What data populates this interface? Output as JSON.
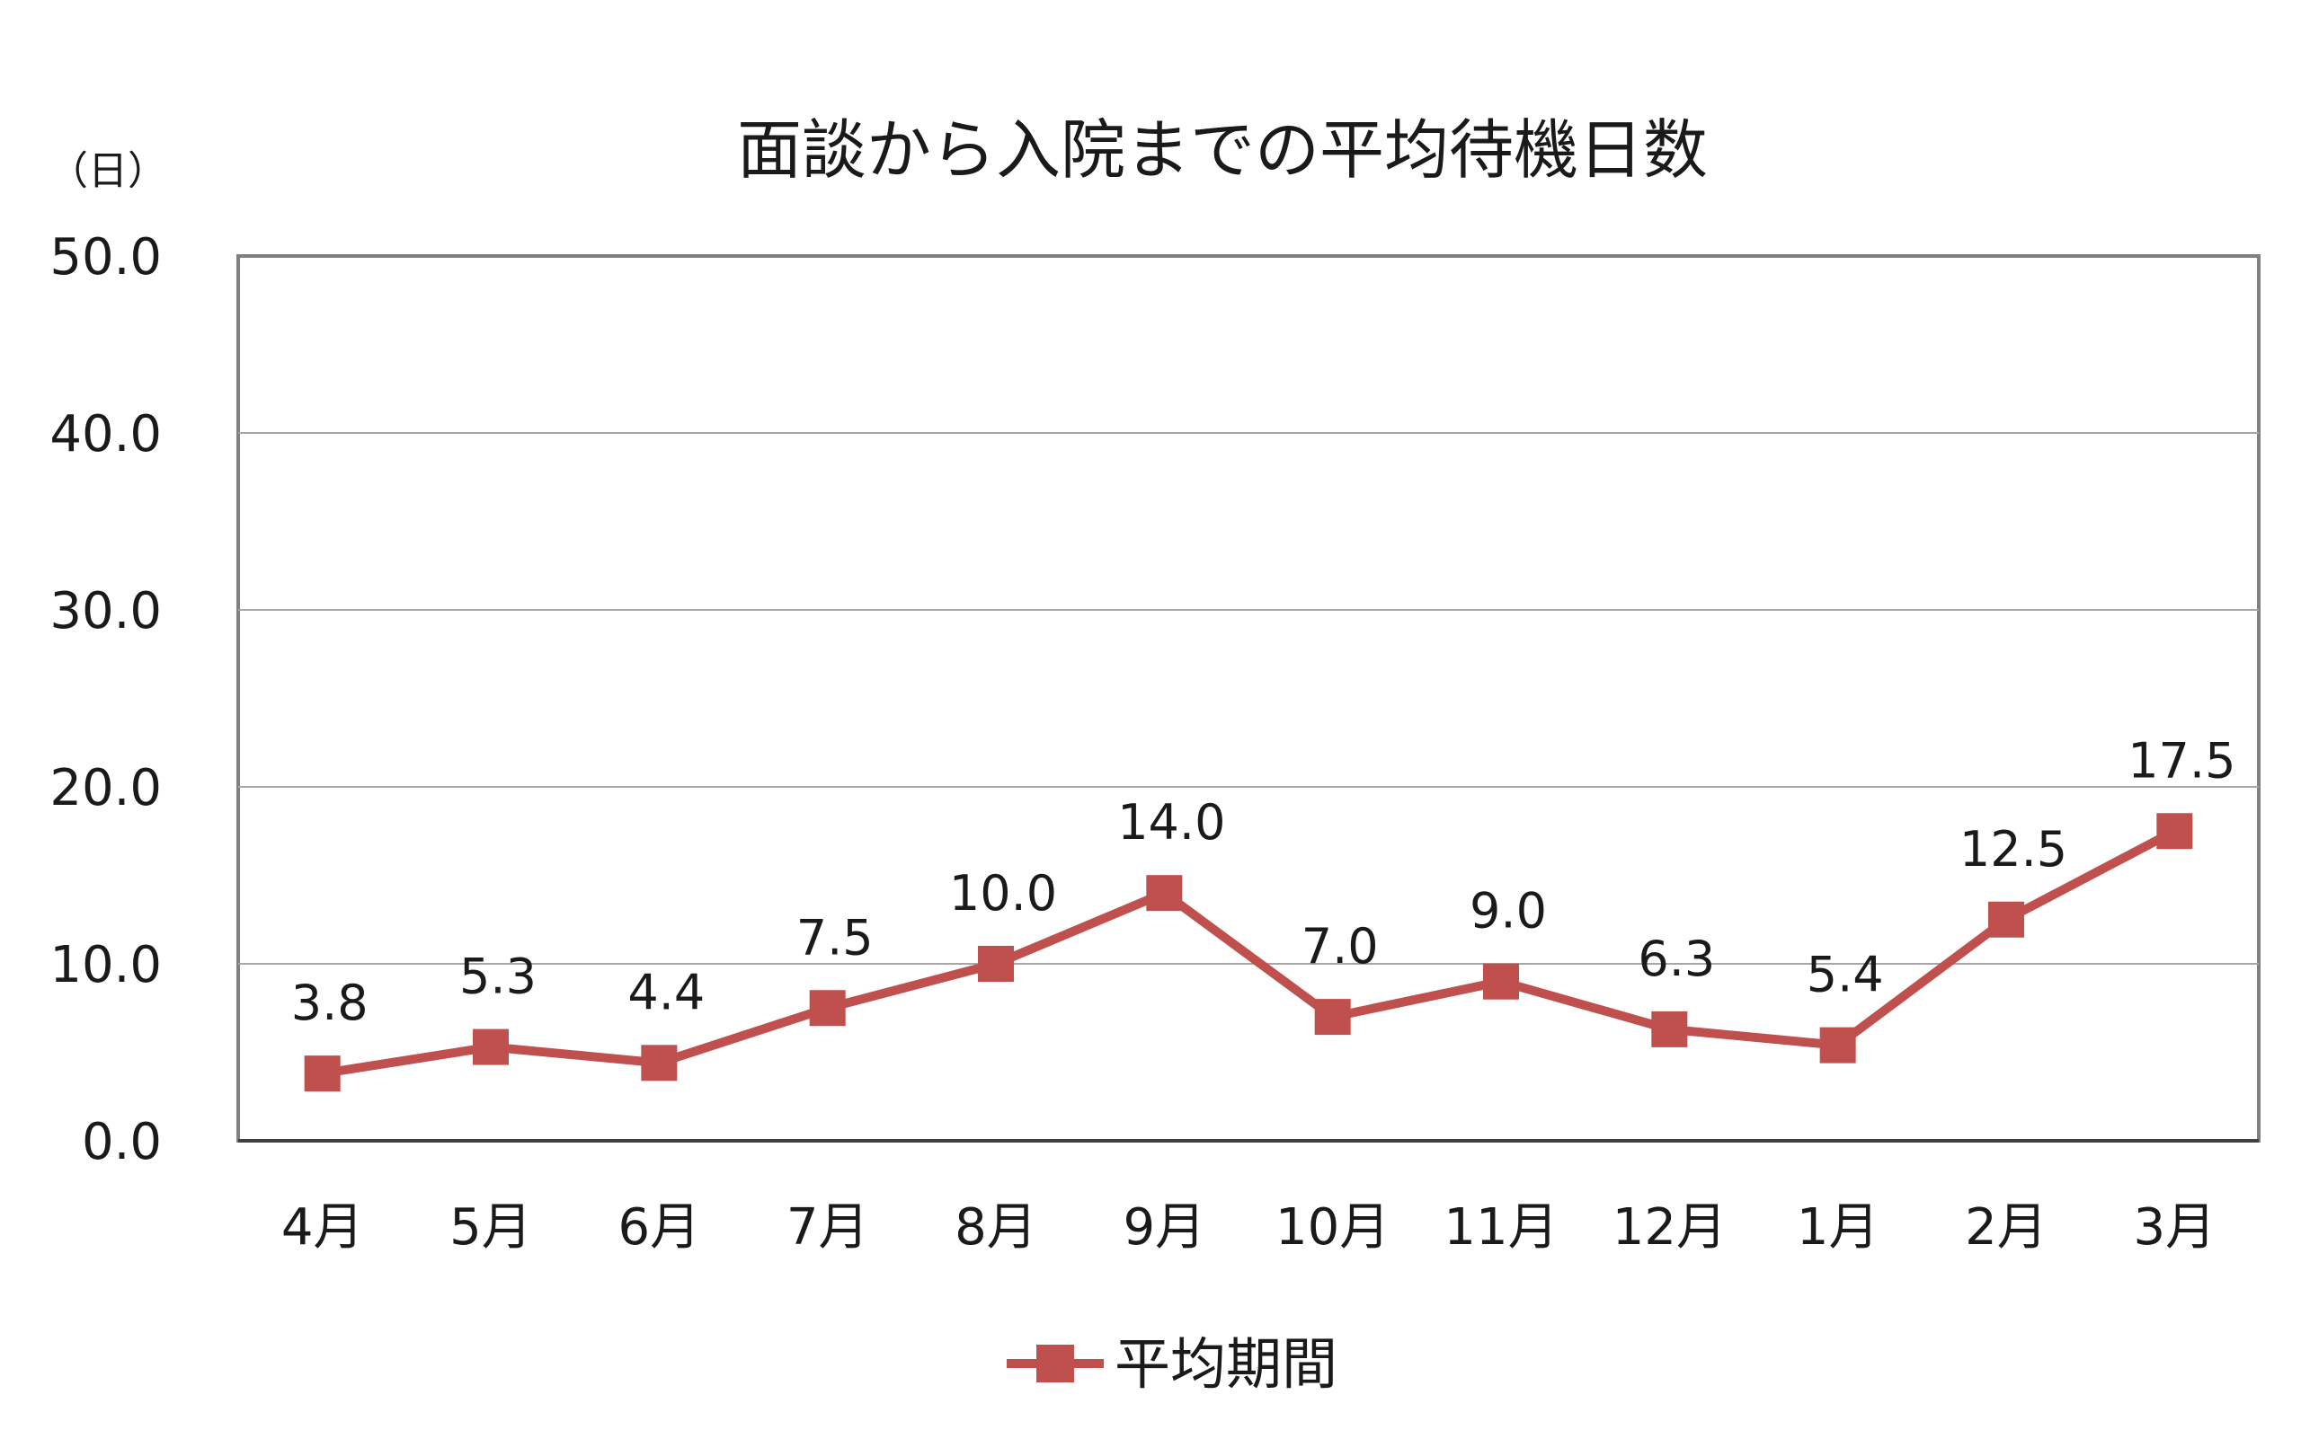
{
  "chart_data": {
    "type": "line",
    "title": "面談から入院までの平均待機日数",
    "ylabel": "（日）",
    "xlabel": "",
    "categories": [
      "4月",
      "5月",
      "6月",
      "7月",
      "8月",
      "9月",
      "10月",
      "11月",
      "12月",
      "1月",
      "2月",
      "3月"
    ],
    "series": [
      {
        "name": "平均期間",
        "values": [
          3.8,
          5.3,
          4.4,
          7.5,
          10.0,
          14.0,
          7.0,
          9.0,
          6.3,
          5.4,
          12.5,
          17.5
        ],
        "labels": [
          "3.8",
          "5.3",
          "4.4",
          "7.5",
          "10.0",
          "14.0",
          "7.0",
          "9.0",
          "6.3",
          "5.4",
          "12.5",
          "17.5"
        ],
        "color": "#c0504d",
        "marker": "square"
      }
    ],
    "ylim": [
      0,
      50
    ],
    "yticks": [
      "0.0",
      "10.0",
      "20.0",
      "30.0",
      "40.0",
      "50.0"
    ],
    "grid": true,
    "legend": "bottom"
  }
}
